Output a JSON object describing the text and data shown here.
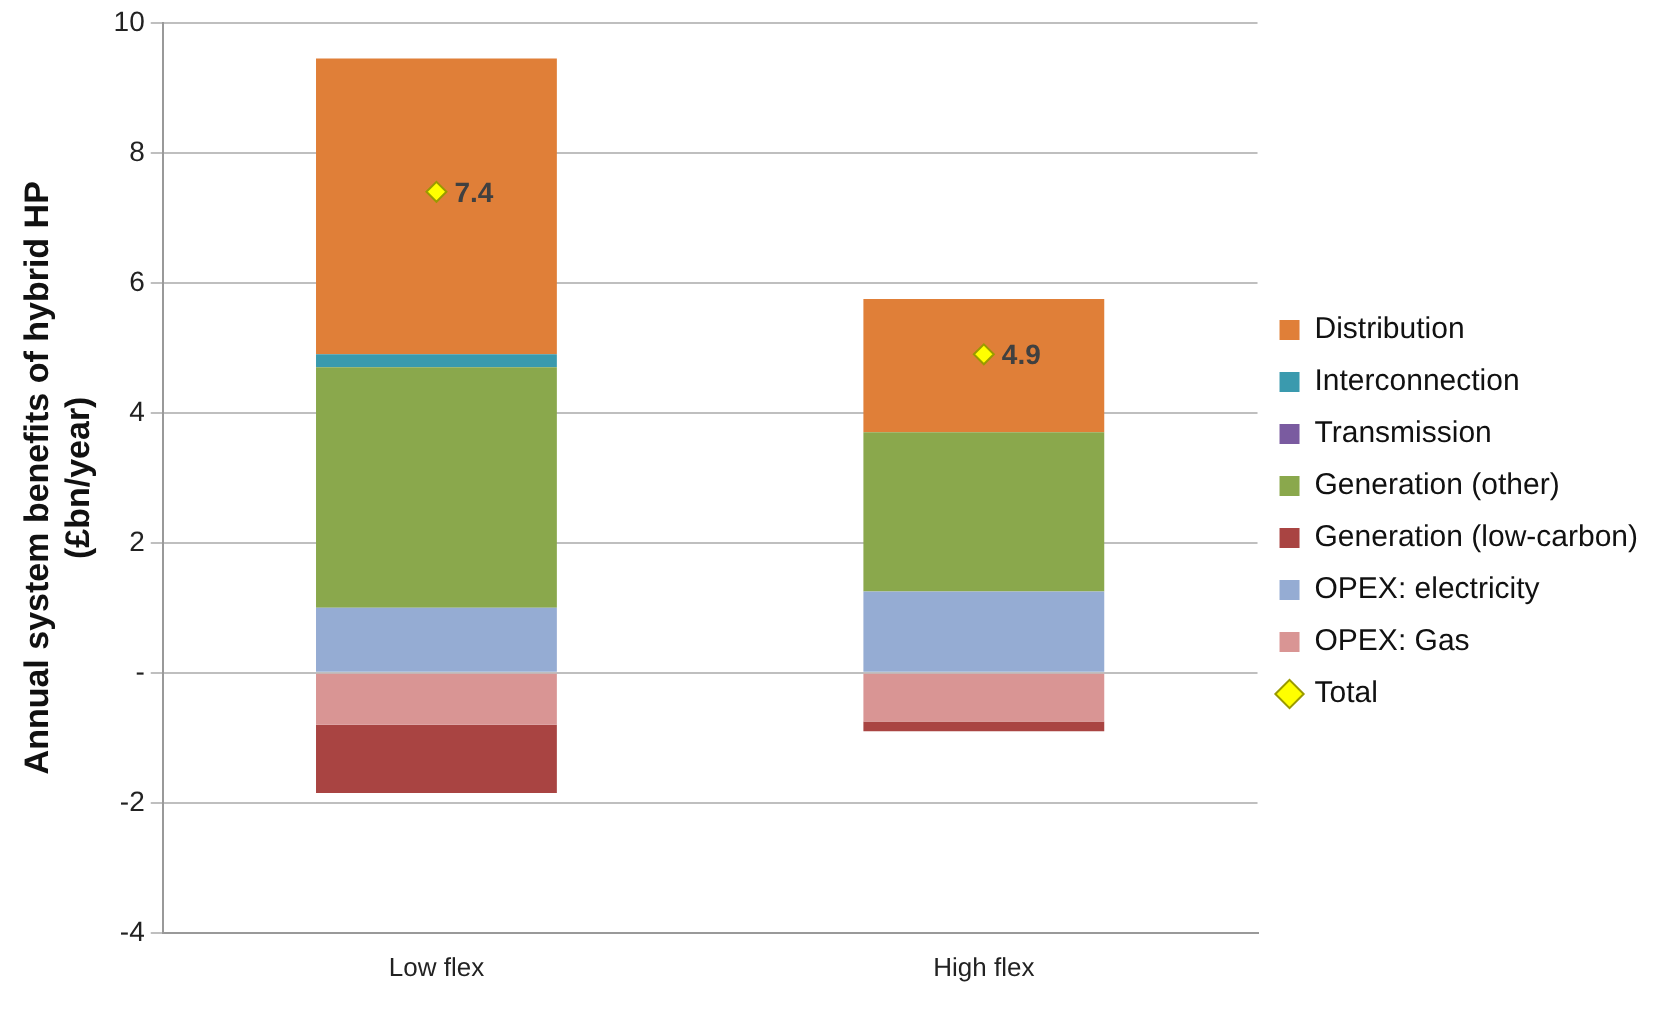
{
  "chart_data": {
    "type": "bar",
    "stacked": true,
    "ylabel": "Annual system benefits of hybrid HP (£bn/year)",
    "categories": [
      "Low flex",
      "High flex"
    ],
    "series": [
      {
        "name": "OPEX: Gas",
        "color": "#d99594",
        "values": [
          -0.8,
          -0.75
        ]
      },
      {
        "name": "OPEX: electricity",
        "color": "#95acd3",
        "values": [
          1.0,
          1.25
        ]
      },
      {
        "name": "Generation (low-carbon)",
        "color": "#a94442",
        "values": [
          -1.05,
          -0.15
        ]
      },
      {
        "name": "Generation (other)",
        "color": "#8aa84c",
        "values": [
          3.7,
          2.45
        ]
      },
      {
        "name": "Transmission",
        "color": "#7a5ba0",
        "values": [
          0,
          0
        ]
      },
      {
        "name": "Interconnection",
        "color": "#3a9aae",
        "values": [
          0.2,
          0
        ]
      },
      {
        "name": "Distribution",
        "color": "#e07f38",
        "values": [
          4.55,
          2.05
        ]
      },
      {
        "name": "Total",
        "type": "scatter",
        "color": "#ffff00",
        "marker": "diamond",
        "x": [
          "Low flex",
          "High flex"
        ],
        "values": [
          7.4,
          4.9
        ],
        "value_labels": [
          "7.4",
          "4.9"
        ]
      }
    ],
    "ylim": [
      -4,
      10
    ],
    "yticks": [
      -4,
      -2,
      {
        "value": 0,
        "label": "-"
      },
      2,
      4,
      6,
      8,
      10
    ],
    "grid": "y",
    "legend": "right"
  }
}
